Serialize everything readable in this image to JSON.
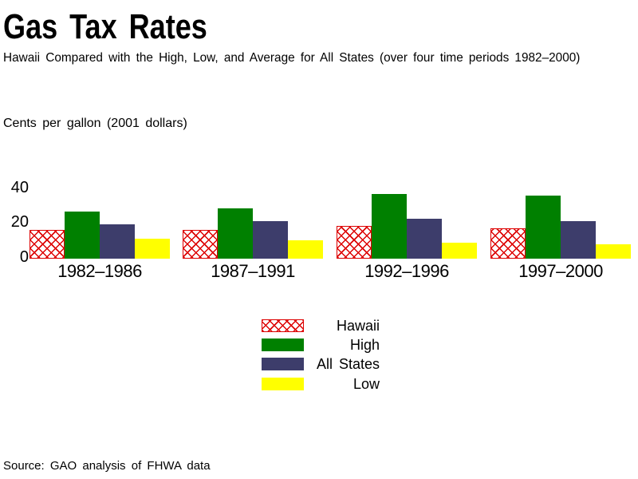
{
  "title": "Gas Tax Rates",
  "subtitle": "Hawaii Compared with the High, Low, and Average for All States (over four time periods 1982–2000)",
  "source_note": "Source: GAO analysis of FHWA data",
  "colors": {
    "hawaii_hatch_red": "#dd0000",
    "high_green": "#008000",
    "all_states_navy": "#3d3d6b",
    "low_yellow": "#ffff00",
    "background": "#ffffff",
    "text": "#000000"
  },
  "chart_data": {
    "type": "bar",
    "title": "Gas Tax Rates",
    "subtitle": "Hawaii Compared with the High, Low, and Average for All States (over four time periods 1982–2000)",
    "ylabel": "Cents per gallon (2001 dollars)",
    "xlabel": "",
    "categories": [
      "1982–1986",
      "1987–1991",
      "1992–1996",
      "1997–2000"
    ],
    "series": [
      {
        "name": "Hawaii",
        "style": "red-crosshatch",
        "color": "#dd0000",
        "values": [
          16,
          16,
          18,
          17
        ]
      },
      {
        "name": "High",
        "style": "solid",
        "color": "#008000",
        "values": [
          26,
          28,
          36,
          35
        ]
      },
      {
        "name": "All States",
        "style": "solid",
        "color": "#3d3d6b",
        "values": [
          19,
          21,
          22,
          21
        ]
      },
      {
        "name": "Low",
        "style": "solid",
        "color": "#ffff00",
        "values": [
          11,
          10,
          9,
          8
        ]
      }
    ],
    "yticks": [
      "0",
      "20",
      "40"
    ],
    "ylim": [
      0,
      45
    ],
    "grid": false,
    "axis_lines": false,
    "legend_position": "bottom-center"
  }
}
